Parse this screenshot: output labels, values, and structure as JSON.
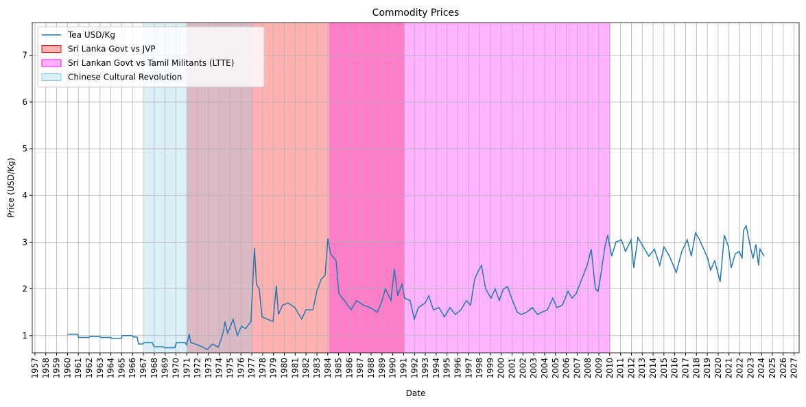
{
  "chart_data": {
    "type": "line",
    "title": "Commodity Prices",
    "x_label": "Date",
    "y_label": "Price (USD/Kg)",
    "x": [
      1960.0,
      1960.92,
      1961.05,
      1962.0,
      1962.06,
      1962.95,
      1963.07,
      1964.02,
      1964.08,
      1964.97,
      1965.03,
      1965.92,
      1966.11,
      1966.42,
      1966.55,
      1966.93,
      1967.06,
      1967.82,
      1968.0,
      1968.83,
      1968.95,
      1969.9,
      1970.03,
      1970.85,
      1970.98,
      1971.23,
      1971.36,
      1971.8,
      1972.43,
      1972.88,
      1973.38,
      1973.89,
      1974.14,
      1974.39,
      1974.52,
      1974.77,
      1975.28,
      1975.66,
      1976.04,
      1976.42,
      1976.92,
      1977.24,
      1977.43,
      1977.68,
      1977.94,
      1978.44,
      1978.95,
      1979.26,
      1979.45,
      1979.83,
      1980.34,
      1980.97,
      1981.6,
      1981.98,
      1982.62,
      1983.0,
      1983.38,
      1983.76,
      1984.01,
      1984.26,
      1984.77,
      1985.02,
      1985.53,
      1986.16,
      1986.66,
      1987.3,
      1987.93,
      1988.56,
      1988.94,
      1989.32,
      1989.83,
      1990.14,
      1990.46,
      1990.84,
      1991.09,
      1991.6,
      1991.98,
      1992.36,
      1992.99,
      1993.31,
      1993.75,
      1994.26,
      1994.76,
      1995.27,
      1995.77,
      1996.28,
      1996.79,
      1997.17,
      1997.54,
      1997.92,
      1998.18,
      1998.56,
      1999.06,
      1999.44,
      1999.82,
      2000.2,
      2000.58,
      2000.96,
      2001.47,
      2001.85,
      2002.35,
      2002.86,
      2003.36,
      2003.74,
      2004.25,
      2004.75,
      2005.13,
      2005.64,
      2006.15,
      2006.53,
      2006.91,
      2007.41,
      2007.92,
      2008.3,
      2008.68,
      2008.93,
      2009.18,
      2009.56,
      2009.81,
      2010.19,
      2010.57,
      2011.08,
      2011.46,
      2011.97,
      2012.22,
      2012.6,
      2013.1,
      2013.61,
      2014.12,
      2014.62,
      2015.0,
      2015.51,
      2016.14,
      2016.65,
      2017.15,
      2017.53,
      2017.91,
      2018.29,
      2018.67,
      2019.05,
      2019.3,
      2019.68,
      2020.19,
      2020.57,
      2020.95,
      2021.2,
      2021.58,
      2021.96,
      2022.21,
      2022.34,
      2022.59,
      2022.97,
      2023.22,
      2023.48,
      2023.73,
      2023.86,
      2024.24
    ],
    "series": [
      {
        "name": "Tea USD/Kg",
        "color": "#1f77b4",
        "values": [
          1.03,
          1.03,
          0.96,
          0.96,
          0.98,
          0.98,
          0.96,
          0.96,
          0.94,
          0.94,
          1.0,
          1.0,
          0.97,
          0.97,
          0.82,
          0.82,
          0.85,
          0.85,
          0.76,
          0.76,
          0.74,
          0.74,
          0.85,
          0.85,
          0.8,
          1.03,
          0.85,
          0.82,
          0.76,
          0.7,
          0.82,
          0.75,
          0.9,
          1.1,
          1.3,
          1.05,
          1.35,
          1.0,
          1.2,
          1.15,
          1.3,
          2.88,
          2.1,
          2.0,
          1.4,
          1.35,
          1.3,
          2.07,
          1.45,
          1.65,
          1.7,
          1.6,
          1.35,
          1.55,
          1.55,
          1.95,
          2.2,
          2.3,
          3.08,
          2.75,
          2.6,
          1.9,
          1.75,
          1.55,
          1.75,
          1.65,
          1.6,
          1.5,
          1.7,
          2.0,
          1.75,
          2.43,
          1.85,
          2.1,
          1.8,
          1.75,
          1.35,
          1.6,
          1.7,
          1.85,
          1.55,
          1.6,
          1.4,
          1.6,
          1.45,
          1.55,
          1.75,
          1.65,
          2.2,
          2.4,
          2.5,
          2.0,
          1.8,
          2.0,
          1.75,
          2.0,
          2.05,
          1.8,
          1.5,
          1.45,
          1.5,
          1.6,
          1.45,
          1.5,
          1.55,
          1.8,
          1.6,
          1.65,
          1.95,
          1.8,
          1.9,
          2.2,
          2.5,
          2.85,
          2.0,
          1.95,
          2.3,
          2.9,
          3.15,
          2.7,
          3.0,
          3.05,
          2.8,
          3.05,
          2.45,
          3.1,
          2.9,
          2.7,
          2.85,
          2.5,
          2.9,
          2.7,
          2.35,
          2.8,
          3.05,
          2.7,
          3.2,
          3.05,
          2.85,
          2.65,
          2.4,
          2.6,
          2.15,
          3.15,
          2.9,
          2.45,
          2.75,
          2.8,
          2.65,
          3.25,
          3.35,
          2.9,
          2.65,
          2.95,
          2.5,
          2.85,
          2.7
        ]
      }
    ],
    "spans": [
      {
        "name": "Sri Lanka Govt vs JVP",
        "color": "#ff0000",
        "start": 1971.04,
        "end": 1991.09
      },
      {
        "name": "Sri Lankan Govt vs Tamil Militants (LTTE)",
        "color": "#ff00ff",
        "start": 1984.13,
        "end": 2010.07
      },
      {
        "name": "Chinese Cultural Revolution",
        "color": "#87ceeb",
        "start": 1967.06,
        "end": 1977.05
      }
    ],
    "xlim": [
      1956.75,
      2027.47
    ],
    "ylim": [
      0.63,
      7.7
    ],
    "xticks": [
      1957,
      1958,
      1959,
      1960,
      1961,
      1962,
      1963,
      1964,
      1965,
      1966,
      1967,
      1968,
      1969,
      1970,
      1971,
      1972,
      1973,
      1974,
      1975,
      1976,
      1977,
      1978,
      1979,
      1980,
      1981,
      1982,
      1983,
      1984,
      1985,
      1986,
      1987,
      1988,
      1989,
      1990,
      1991,
      1992,
      1993,
      1994,
      1995,
      1996,
      1997,
      1998,
      1999,
      2000,
      2001,
      2002,
      2003,
      2004,
      2005,
      2006,
      2007,
      2008,
      2009,
      2010,
      2011,
      2012,
      2013,
      2014,
      2015,
      2016,
      2017,
      2018,
      2019,
      2020,
      2021,
      2022,
      2023,
      2024,
      2025,
      2026,
      2027
    ],
    "yticks": [
      1,
      2,
      3,
      4,
      5,
      6,
      7
    ],
    "grid": true,
    "legend": "upper left"
  }
}
